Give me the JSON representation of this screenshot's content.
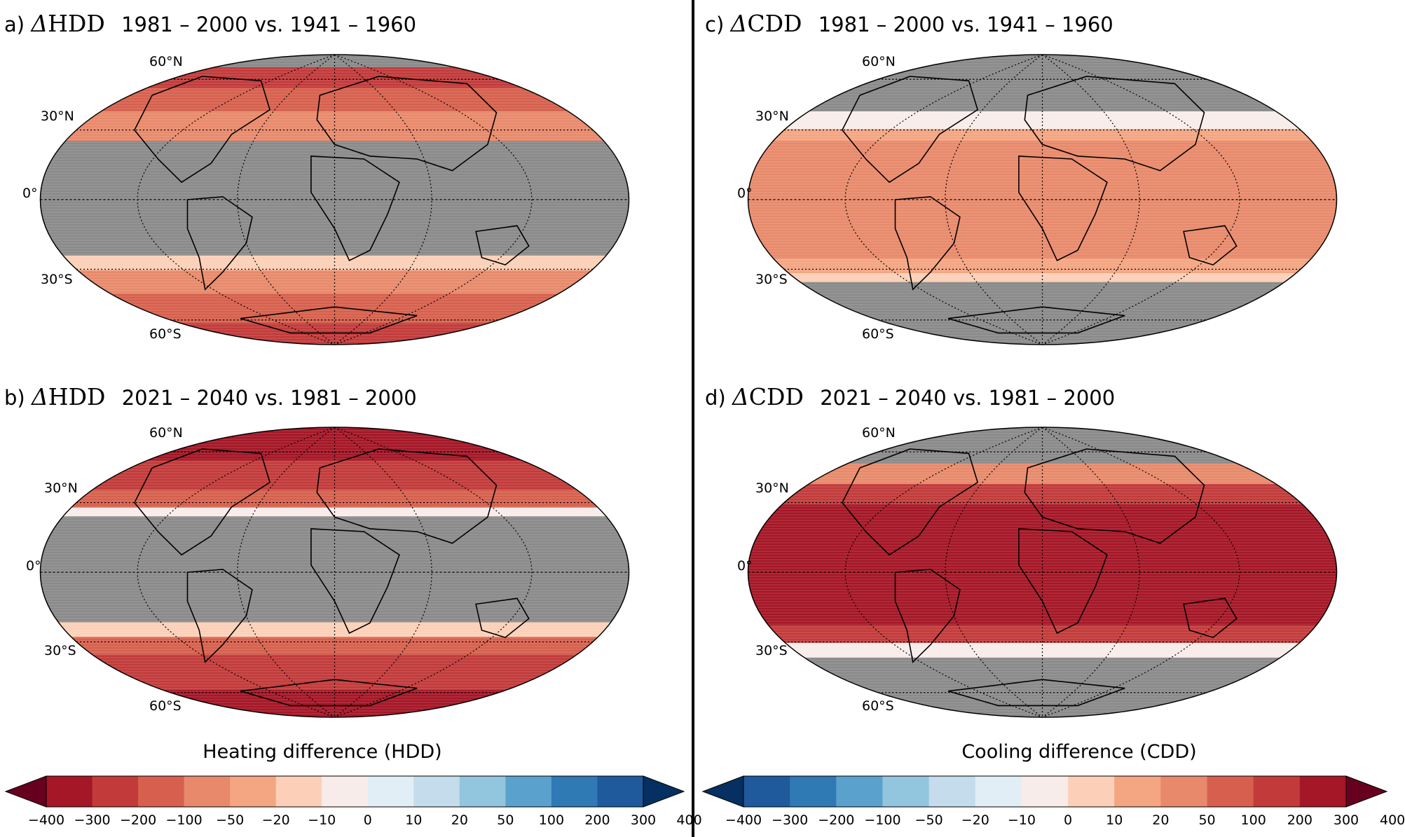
{
  "panels": [
    {
      "id": "a",
      "letter": "a)",
      "symbol": "Δ",
      "variable": "HDD",
      "period": "1981 – 2000 vs. 1941 – 1960",
      "lat_labels": [
        "60°N",
        "30°N",
        "0°",
        "30°S",
        "60°S"
      ]
    },
    {
      "id": "b",
      "letter": "b)",
      "symbol": "Δ",
      "variable": "HDD",
      "period": "2021 – 2040 vs. 1981 – 2000",
      "lat_labels": [
        "60°N",
        "30°N",
        "0°",
        "30°S",
        "60°S"
      ]
    },
    {
      "id": "c",
      "letter": "c)",
      "symbol": "Δ",
      "variable": "CDD",
      "period": "1981 – 2000 vs. 1941 – 1960",
      "lat_labels": [
        "60°N",
        "30°N",
        "0°",
        "30°S",
        "60°S"
      ]
    },
    {
      "id": "d",
      "letter": "d)",
      "symbol": "Δ",
      "variable": "CDD",
      "period": "2021 – 2040 vs. 1981 – 2000",
      "lat_labels": [
        "60°N",
        "30°N",
        "0°",
        "30°S",
        "60°S"
      ]
    }
  ],
  "colorbars": [
    {
      "id": "hdd",
      "title": "Heating difference (HDD)",
      "ticks": [
        "−400",
        "−300",
        "−200",
        "−100",
        "−50",
        "−20",
        "−10",
        "0",
        "10",
        "20",
        "50",
        "100",
        "200",
        "300",
        "400"
      ],
      "colors": [
        "#67001f",
        "#a51626",
        "#c23a3a",
        "#d6604d",
        "#e8896b",
        "#f4a582",
        "#fcd0b8",
        "#f8ecea",
        "#e2eef5",
        "#c5dcec",
        "#92c5de",
        "#5aa2cd",
        "#2f79b5",
        "#1f5a9c",
        "#053061"
      ]
    },
    {
      "id": "cdd",
      "title": "Cooling difference (CDD)",
      "ticks": [
        "−400",
        "−300",
        "−200",
        "−100",
        "−50",
        "−20",
        "−10",
        "0",
        "10",
        "20",
        "50",
        "100",
        "200",
        "300",
        "400"
      ],
      "colors": [
        "#053061",
        "#1f5a9c",
        "#2f79b5",
        "#5aa2cd",
        "#92c5de",
        "#c5dcec",
        "#e2eef5",
        "#f8ecea",
        "#fcd0b8",
        "#f4a582",
        "#e8896b",
        "#d6604d",
        "#c23a3a",
        "#a51626",
        "#67001f"
      ]
    }
  ],
  "map_colors": {
    "no_data": "#8a8a8a",
    "land_outline": "#000000"
  }
}
